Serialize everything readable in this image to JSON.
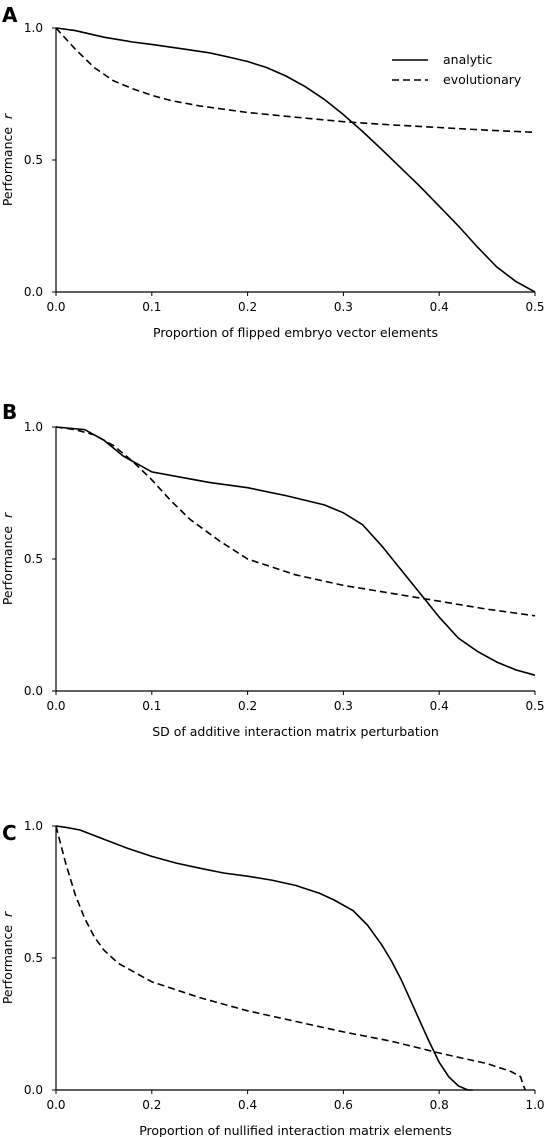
{
  "chart_data": [
    {
      "type": "line",
      "panel_label": "A",
      "xlabel": "Proportion of flipped embryo vector elements",
      "ylabel": "Performance",
      "ylabel_symbol": "r",
      "xlim": [
        0,
        0.5
      ],
      "ylim": [
        0,
        1
      ],
      "xticks": [
        0,
        0.1,
        0.2,
        0.3,
        0.4,
        0.5
      ],
      "xtick_labels": [
        "0.0",
        "0.1",
        "0.2",
        "0.3",
        "0.4",
        "0.5"
      ],
      "yticks": [
        0,
        0.5,
        1.0
      ],
      "ytick_labels": [
        "0.0",
        "0.5",
        "1.0"
      ],
      "legend": {
        "placement": "top-right",
        "entries": [
          "analytic",
          "evolutionary"
        ]
      },
      "series": [
        {
          "name": "analytic",
          "style": "solid",
          "x": [
            0,
            0.02,
            0.05,
            0.08,
            0.1,
            0.13,
            0.16,
            0.18,
            0.2,
            0.22,
            0.24,
            0.26,
            0.28,
            0.3,
            0.32,
            0.34,
            0.36,
            0.38,
            0.4,
            0.42,
            0.44,
            0.46,
            0.48,
            0.5
          ],
          "y": [
            1.0,
            0.99,
            0.965,
            0.947,
            0.938,
            0.922,
            0.906,
            0.89,
            0.873,
            0.85,
            0.818,
            0.778,
            0.73,
            0.672,
            0.608,
            0.54,
            0.47,
            0.4,
            0.325,
            0.25,
            0.17,
            0.095,
            0.04,
            0.0
          ]
        },
        {
          "name": "evolutionary",
          "style": "dashed",
          "x": [
            0,
            0.02,
            0.04,
            0.06,
            0.08,
            0.1,
            0.12,
            0.15,
            0.2,
            0.25,
            0.3,
            0.35,
            0.4,
            0.45,
            0.5
          ],
          "y": [
            1.0,
            0.92,
            0.85,
            0.8,
            0.77,
            0.745,
            0.725,
            0.705,
            0.68,
            0.662,
            0.645,
            0.633,
            0.623,
            0.613,
            0.605
          ]
        }
      ]
    },
    {
      "type": "line",
      "panel_label": "B",
      "xlabel": "SD of additive interaction matrix perturbation",
      "ylabel": "Performance",
      "ylabel_symbol": "r",
      "xlim": [
        0,
        0.5
      ],
      "ylim": [
        0,
        1
      ],
      "xticks": [
        0,
        0.1,
        0.2,
        0.3,
        0.4,
        0.5
      ],
      "xtick_labels": [
        "0.0",
        "0.1",
        "0.2",
        "0.3",
        "0.4",
        "0.5"
      ],
      "yticks": [
        0,
        0.5,
        1.0
      ],
      "ytick_labels": [
        "0.0",
        "0.5",
        "1.0"
      ],
      "series": [
        {
          "name": "analytic",
          "style": "solid",
          "x": [
            0,
            0.03,
            0.05,
            0.07,
            0.09,
            0.1,
            0.13,
            0.16,
            0.2,
            0.24,
            0.28,
            0.3,
            0.32,
            0.34,
            0.36,
            0.38,
            0.4,
            0.42,
            0.44,
            0.46,
            0.48,
            0.5
          ],
          "y": [
            1.0,
            0.99,
            0.95,
            0.89,
            0.85,
            0.83,
            0.81,
            0.79,
            0.77,
            0.74,
            0.705,
            0.675,
            0.63,
            0.55,
            0.46,
            0.37,
            0.28,
            0.2,
            0.15,
            0.11,
            0.08,
            0.06
          ]
        },
        {
          "name": "evolutionary",
          "style": "dashed",
          "x": [
            0,
            0.02,
            0.04,
            0.06,
            0.08,
            0.1,
            0.12,
            0.14,
            0.17,
            0.2,
            0.25,
            0.3,
            0.35,
            0.4,
            0.45,
            0.5
          ],
          "y": [
            1.0,
            0.99,
            0.97,
            0.93,
            0.87,
            0.8,
            0.72,
            0.65,
            0.57,
            0.5,
            0.44,
            0.4,
            0.37,
            0.34,
            0.31,
            0.285
          ]
        }
      ]
    },
    {
      "type": "line",
      "panel_label": "C",
      "xlabel": "Proportion of nullified interaction matrix elements",
      "ylabel": "Performance",
      "ylabel_symbol": "r",
      "xlim": [
        0,
        1.0
      ],
      "ylim": [
        0,
        1
      ],
      "xticks": [
        0,
        0.2,
        0.4,
        0.6,
        0.8,
        1.0
      ],
      "xtick_labels": [
        "0.0",
        "0.2",
        "0.4",
        "0.6",
        "0.8",
        "1.0"
      ],
      "yticks": [
        0,
        0.5,
        1.0
      ],
      "ytick_labels": [
        "0.0",
        "0.5",
        "1.0"
      ],
      "series": [
        {
          "name": "analytic",
          "style": "solid",
          "x": [
            0,
            0.02,
            0.05,
            0.1,
            0.15,
            0.2,
            0.25,
            0.3,
            0.35,
            0.4,
            0.45,
            0.5,
            0.55,
            0.58,
            0.62,
            0.65,
            0.68,
            0.7,
            0.72,
            0.74,
            0.76,
            0.78,
            0.8,
            0.82,
            0.84,
            0.86,
            0.87
          ],
          "y": [
            1.0,
            0.995,
            0.985,
            0.95,
            0.915,
            0.885,
            0.86,
            0.84,
            0.822,
            0.81,
            0.795,
            0.775,
            0.745,
            0.72,
            0.68,
            0.625,
            0.55,
            0.49,
            0.42,
            0.34,
            0.26,
            0.18,
            0.105,
            0.05,
            0.015,
            0.0,
            0.0
          ]
        },
        {
          "name": "evolutionary",
          "style": "dashed",
          "x": [
            0,
            0.02,
            0.04,
            0.06,
            0.08,
            0.1,
            0.13,
            0.16,
            0.2,
            0.25,
            0.3,
            0.4,
            0.5,
            0.6,
            0.7,
            0.8,
            0.9,
            0.95,
            0.97,
            0.975,
            0.98
          ],
          "y": [
            1.0,
            0.86,
            0.74,
            0.65,
            0.58,
            0.53,
            0.48,
            0.45,
            0.41,
            0.38,
            0.35,
            0.3,
            0.26,
            0.22,
            0.185,
            0.14,
            0.1,
            0.07,
            0.05,
            0.02,
            0.0
          ]
        }
      ]
    }
  ]
}
